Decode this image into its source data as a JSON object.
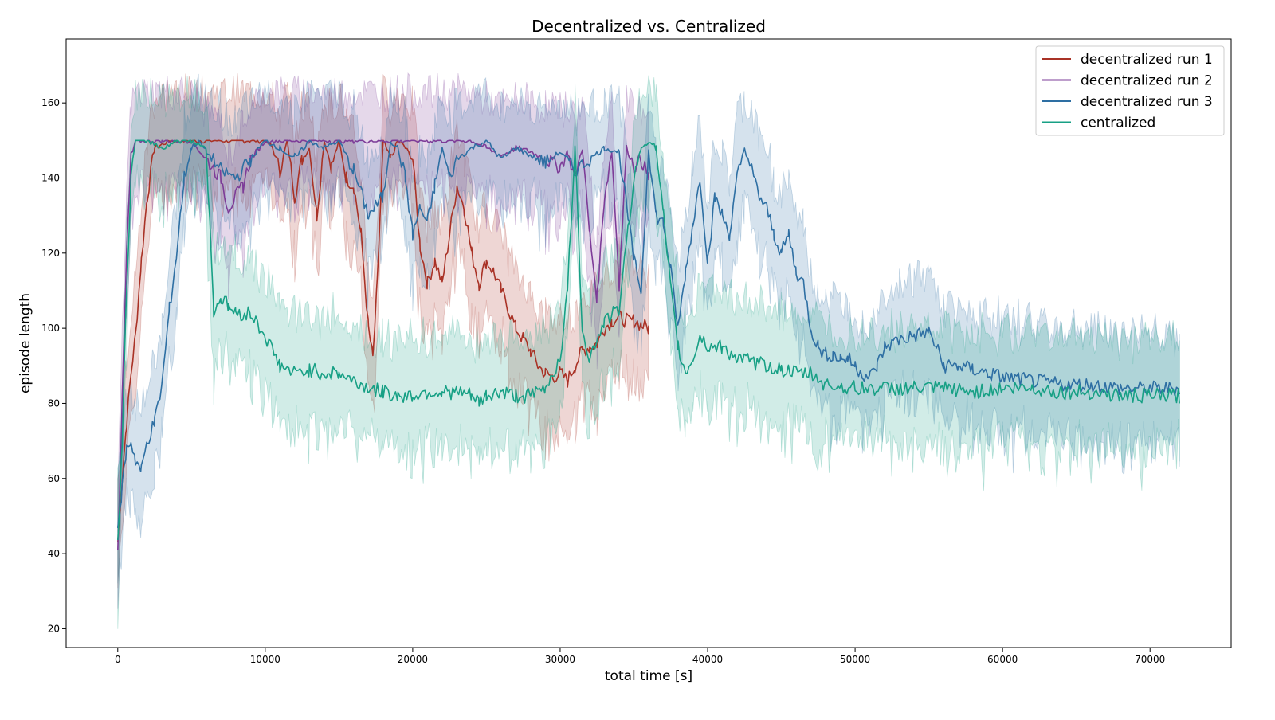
{
  "chart_data": {
    "type": "line",
    "title": "Decentralized vs. Centralized",
    "xlabel": "total time [s]",
    "ylabel": "episode length",
    "xlim": [
      -3500,
      75500
    ],
    "ylim": [
      15,
      177
    ],
    "xticks": [
      0,
      10000,
      20000,
      30000,
      40000,
      50000,
      60000,
      70000
    ],
    "yticks": [
      20,
      40,
      60,
      80,
      100,
      120,
      140,
      160
    ],
    "grid": false,
    "legend_position": "top-right",
    "series": [
      {
        "name": "decentralized run 1",
        "color": "#a93226",
        "x": [
          0,
          300,
          600,
          900,
          1200,
          1600,
          2000,
          2500,
          3000,
          3500,
          4000,
          5000,
          6000,
          7000,
          8000,
          9000,
          10000,
          10500,
          11000,
          11500,
          12000,
          12500,
          13000,
          13500,
          14000,
          14500,
          15000,
          15500,
          16000,
          16500,
          17000,
          17300,
          17600,
          18000,
          18500,
          19000,
          19500,
          20000,
          20500,
          21000,
          21500,
          22000,
          22500,
          23000,
          23500,
          24000,
          24500,
          25000,
          25500,
          26000,
          26500,
          27000,
          27500,
          28000,
          28500,
          29000,
          29500,
          30000,
          30500,
          31000,
          31500,
          32000,
          32500,
          33000,
          33500,
          34000,
          34500,
          35000,
          35500,
          36000
        ],
        "y": [
          43,
          60,
          75,
          88,
          98,
          118,
          135,
          148,
          149,
          150,
          150,
          150,
          150,
          150,
          150,
          150,
          150,
          148,
          142,
          150,
          135,
          145,
          148,
          130,
          150,
          143,
          150,
          140,
          138,
          125,
          100,
          92,
          112,
          150,
          145,
          150,
          148,
          145,
          122,
          112,
          118,
          112,
          125,
          138,
          132,
          120,
          112,
          118,
          115,
          110,
          105,
          100,
          97,
          94,
          90,
          88,
          87,
          88,
          86,
          90,
          94,
          95,
          96,
          100,
          102,
          103,
          102,
          102,
          101,
          100
        ]
      },
      {
        "name": "decentralized run 2",
        "color": "#7d3c98",
        "x": [
          0,
          300,
          600,
          900,
          1200,
          2000,
          3000,
          4000,
          5000,
          6000,
          7000,
          7500,
          8000,
          8500,
          9000,
          10000,
          12000,
          14000,
          16000,
          18000,
          20000,
          22000,
          24000,
          25000,
          26000,
          27000,
          28000,
          29000,
          30000,
          30500,
          31000,
          31500,
          32000,
          32500,
          33000,
          33500,
          34000,
          34500,
          35000,
          35500,
          36000
        ],
        "y": [
          42,
          80,
          120,
          145,
          150,
          150,
          150,
          150,
          150,
          145,
          140,
          132,
          135,
          138,
          145,
          150,
          150,
          150,
          150,
          150,
          150,
          150,
          150,
          148,
          146,
          148,
          147,
          145,
          143,
          147,
          140,
          148,
          125,
          108,
          135,
          147,
          112,
          148,
          143,
          145,
          140
        ]
      },
      {
        "name": "decentralized run 3",
        "color": "#2e6fa3",
        "x": [
          0,
          300,
          600,
          900,
          1200,
          1600,
          2000,
          2500,
          3000,
          3500,
          4000,
          4500,
          5000,
          5500,
          6000,
          7000,
          8000,
          9000,
          10000,
          11000,
          12000,
          13000,
          14000,
          15000,
          16000,
          17000,
          18000,
          18500,
          19000,
          19500,
          20000,
          20500,
          21000,
          21500,
          22000,
          22500,
          23000,
          24000,
          25000,
          26000,
          27000,
          28000,
          29000,
          30000,
          31000,
          32000,
          33000,
          34000,
          35000,
          35500,
          36000,
          36500,
          37000,
          37500,
          38000,
          38500,
          39000,
          39500,
          40000,
          40500,
          41000,
          41500,
          42000,
          42500,
          43000,
          43500,
          44000,
          44500,
          45000,
          45500,
          46000,
          46500,
          47000,
          47500,
          48000,
          48500,
          49000,
          49500,
          50000,
          50500,
          51000,
          51500,
          52000,
          53000,
          54000,
          55000,
          55500,
          56000,
          57000,
          58000,
          59000,
          60000,
          62000,
          64000,
          66000,
          68000,
          70000,
          72000
        ],
        "y": [
          45,
          58,
          68,
          70,
          65,
          62,
          70,
          75,
          85,
          105,
          120,
          140,
          148,
          150,
          147,
          142,
          140,
          145,
          150,
          148,
          145,
          150,
          148,
          150,
          142,
          130,
          135,
          150,
          148,
          140,
          125,
          132,
          128,
          138,
          148,
          140,
          145,
          148,
          150,
          145,
          148,
          146,
          144,
          147,
          142,
          145,
          148,
          147,
          118,
          110,
          148,
          130,
          128,
          115,
          100,
          115,
          128,
          140,
          118,
          135,
          130,
          125,
          140,
          148,
          142,
          135,
          132,
          125,
          120,
          125,
          115,
          112,
          100,
          95,
          93,
          93,
          92,
          92,
          90,
          88,
          87,
          90,
          95,
          97,
          98,
          99,
          95,
          90,
          90,
          89,
          88,
          87,
          86,
          85,
          85,
          84,
          84,
          84
        ]
      },
      {
        "name": "centralized",
        "color": "#17a085",
        "x": [
          0,
          300,
          600,
          900,
          1200,
          2000,
          3000,
          4000,
          5000,
          6000,
          6500,
          7000,
          7500,
          8000,
          9000,
          10000,
          11000,
          12000,
          13000,
          14000,
          15000,
          16000,
          17000,
          18000,
          19000,
          20000,
          21000,
          22000,
          23000,
          24000,
          24500,
          25000,
          26000,
          27000,
          28000,
          29000,
          30000,
          30500,
          31000,
          31500,
          32000,
          33000,
          34000,
          35000,
          35500,
          36000,
          36500,
          37000,
          37500,
          38000,
          38500,
          39000,
          39500,
          40000,
          41000,
          42000,
          43000,
          44000,
          45000,
          46000,
          47000,
          48000,
          50000,
          52000,
          54000,
          56000,
          58000,
          60000,
          62000,
          64000,
          66000,
          68000,
          70000,
          72000
        ],
        "y": [
          42,
          70,
          110,
          140,
          150,
          150,
          148,
          150,
          150,
          148,
          105,
          108,
          106,
          104,
          104,
          98,
          90,
          88,
          89,
          88,
          88,
          86,
          84,
          83,
          82,
          82,
          83,
          83,
          83,
          82,
          80,
          82,
          83,
          82,
          82,
          84,
          92,
          110,
          148,
          100,
          92,
          102,
          105,
          140,
          148,
          150,
          148,
          130,
          110,
          95,
          88,
          92,
          98,
          95,
          95,
          92,
          91,
          90,
          89,
          88,
          88,
          85,
          84,
          84,
          84,
          84,
          83,
          84,
          84,
          83,
          83,
          82,
          82,
          82
        ]
      }
    ]
  }
}
